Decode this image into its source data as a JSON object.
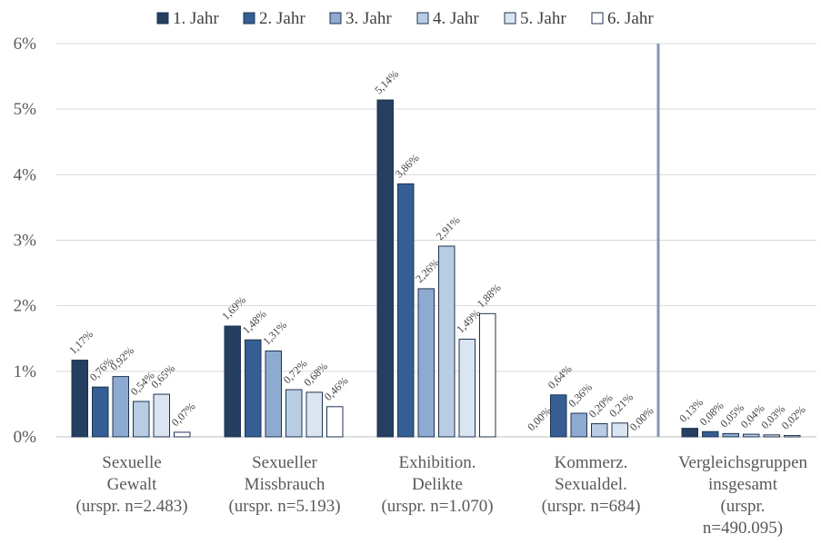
{
  "chart_data": {
    "type": "bar",
    "categories": [
      [
        "Sexuelle",
        "Gewalt",
        "(urspr. n=2.483)"
      ],
      [
        "Sexueller",
        "Missbrauch",
        "(urspr. n=5.193)"
      ],
      [
        "Exhibition.",
        "Delikte",
        "(urspr. n=1.070)"
      ],
      [
        "Kommerz.",
        "Sexualdel.",
        "(urspr. n=684)"
      ],
      [
        "Vergleichsgruppen",
        "insgesamt",
        "(urspr.",
        "n=490.095)"
      ]
    ],
    "series": [
      {
        "name": "1. Jahr",
        "color": "#243f60",
        "values": [
          1.17,
          1.69,
          5.14,
          0.0,
          0.13
        ],
        "labels": [
          "1,17%",
          "1,69%",
          "5,14%",
          "0,00%",
          "0,13%"
        ]
      },
      {
        "name": "2. Jahr",
        "color": "#355e94",
        "values": [
          0.76,
          1.48,
          3.86,
          0.64,
          0.08
        ],
        "labels": [
          "0,76%",
          "1,48%",
          "3,86%",
          "0,64%",
          "0,08%"
        ]
      },
      {
        "name": "3. Jahr",
        "color": "#8eaad0",
        "values": [
          0.92,
          1.31,
          2.26,
          0.36,
          0.05
        ],
        "labels": [
          "0,92%",
          "1,31%",
          "2,26%",
          "0,36%",
          "0,05%"
        ]
      },
      {
        "name": "4. Jahr",
        "color": "#b8cce4",
        "values": [
          0.54,
          0.72,
          2.91,
          0.2,
          0.04
        ],
        "labels": [
          "0,54%",
          "0,72%",
          "2,91%",
          "0,20%",
          "0,04%"
        ]
      },
      {
        "name": "5. Jahr",
        "color": "#dbe5f1",
        "values": [
          0.65,
          0.68,
          1.49,
          0.21,
          0.03
        ],
        "labels": [
          "0,65%",
          "0,68%",
          "1,49%",
          "0,21%",
          "0,03%"
        ]
      },
      {
        "name": "6. Jahr",
        "color": "#ffffff",
        "values": [
          0.07,
          0.46,
          1.88,
          0.0,
          0.02
        ],
        "labels": [
          "0,07%",
          "0,46%",
          "1,88%",
          "0,00%",
          "0,02%"
        ]
      }
    ],
    "y_ticks": [
      "0%",
      "1%",
      "2%",
      "3%",
      "4%",
      "5%",
      "6%"
    ],
    "ylim": [
      0,
      6
    ],
    "ylabel": "",
    "xlabel": "",
    "title": "",
    "grid": true,
    "legend_position": "top",
    "separator_between_categories": [
      4,
      5
    ],
    "colors": {
      "bar_outline": "#1f3350",
      "grid": "#d9d9d9",
      "separator": "#8496b0",
      "axis": "#bfbfbf"
    }
  }
}
